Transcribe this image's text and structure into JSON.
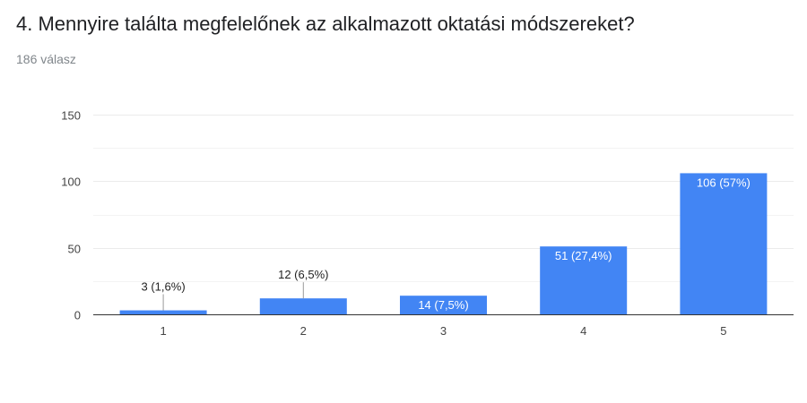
{
  "question": {
    "title": "4. Mennyire találta megfelelőnek az alkalmazott oktatási módszereket?",
    "responses": "186 válasz"
  },
  "colors": {
    "bar": "#4285f4",
    "grid": "#ebebeb",
    "axis": "#333333",
    "label_dark": "#222222",
    "label_light": "#ffffff"
  },
  "chart_data": {
    "type": "bar",
    "categories": [
      "1",
      "2",
      "3",
      "4",
      "5"
    ],
    "values": [
      3,
      12,
      14,
      51,
      106
    ],
    "data_labels": [
      "3 (1,6%)",
      "12 (6,5%)",
      "14 (7,5%)",
      "51 (27,4%)",
      "106 (57%)"
    ],
    "ylim": [
      0,
      150
    ],
    "yticks": [
      0,
      50,
      100,
      150
    ],
    "grid": true,
    "legend": "none",
    "title": "",
    "xlabel": "",
    "ylabel": ""
  }
}
